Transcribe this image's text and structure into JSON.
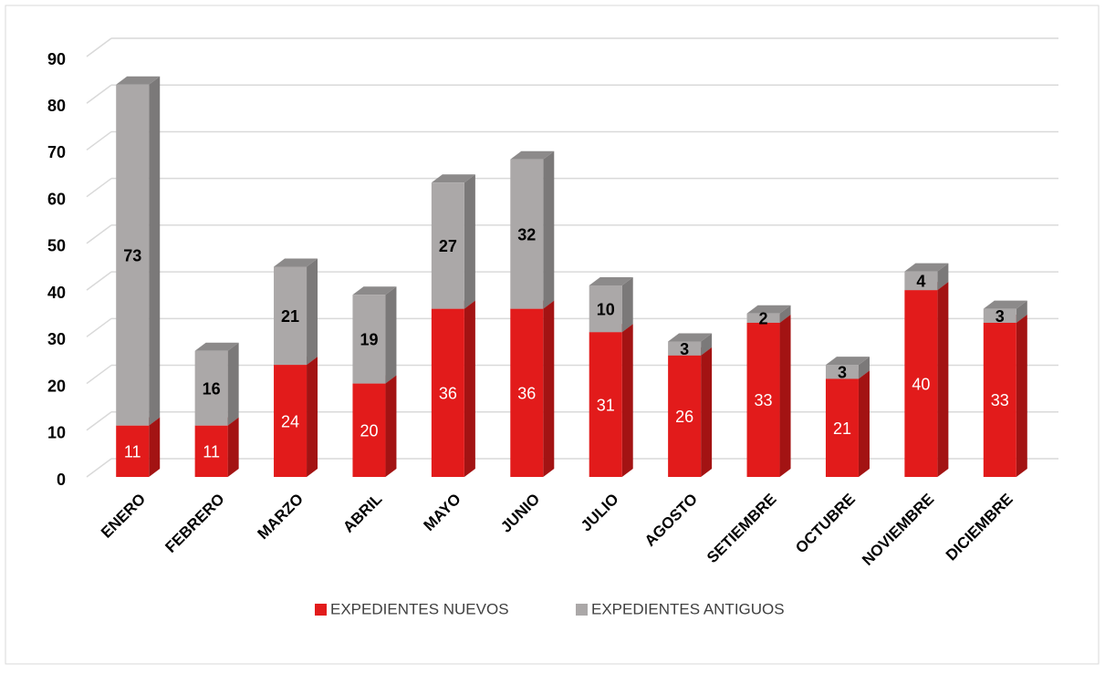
{
  "chart_data": {
    "type": "bar3d_stacked",
    "categories": [
      "ENERO",
      "FEBRERO",
      "MARZO",
      "ABRIL",
      "MAYO",
      "JUNIO",
      "JULIO",
      "AGOSTO",
      "SETIEMBRE",
      "OCTUBRE",
      "NOVIEMBRE",
      "DICIEMBRE"
    ],
    "series": [
      {
        "name": "EXPEDIENTES NUEVOS",
        "color": "#e21b1b",
        "values": [
          11,
          11,
          24,
          20,
          36,
          36,
          31,
          26,
          33,
          21,
          40,
          33
        ]
      },
      {
        "name": "EXPEDIENTES ANTIGUOS",
        "color": "#aba8a8",
        "values": [
          73,
          16,
          21,
          19,
          27,
          32,
          10,
          3,
          2,
          3,
          4,
          3
        ]
      }
    ],
    "ylim": [
      0,
      90
    ],
    "yticks": [
      0,
      10,
      20,
      30,
      40,
      50,
      60,
      70,
      80,
      90
    ],
    "grid": true,
    "legend": "bottom"
  }
}
